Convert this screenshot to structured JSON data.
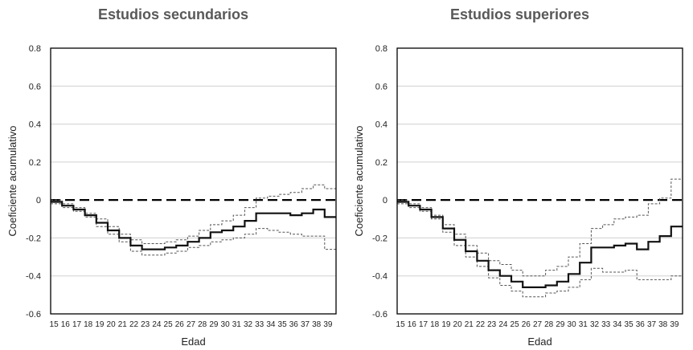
{
  "chart_data": [
    {
      "type": "line",
      "title": "Estudios secundarios",
      "xlabel": "Edad",
      "ylabel": "Coeficiente acumulativo",
      "ylim": [
        -0.6,
        0.8
      ],
      "yticks": [
        "0.8",
        "0.6",
        "0.4",
        "0.2",
        "0",
        "-0.2",
        "-0.4",
        "-0.6"
      ],
      "x": [
        15,
        16,
        17,
        18,
        19,
        20,
        21,
        22,
        23,
        24,
        25,
        26,
        27,
        28,
        29,
        30,
        31,
        32,
        33,
        34,
        35,
        36,
        37,
        38,
        39
      ],
      "grid": true,
      "zero_line": true,
      "series": [
        {
          "role": "estimate",
          "values": [
            -0.01,
            -0.03,
            -0.05,
            -0.08,
            -0.12,
            -0.16,
            -0.2,
            -0.24,
            -0.26,
            -0.26,
            -0.25,
            -0.24,
            -0.22,
            -0.2,
            -0.17,
            -0.16,
            -0.14,
            -0.11,
            -0.07,
            -0.07,
            -0.07,
            -0.08,
            -0.07,
            -0.05,
            -0.09
          ]
        },
        {
          "role": "upper",
          "values": [
            0.0,
            -0.02,
            -0.04,
            -0.07,
            -0.1,
            -0.14,
            -0.18,
            -0.21,
            -0.23,
            -0.23,
            -0.22,
            -0.21,
            -0.19,
            -0.16,
            -0.13,
            -0.11,
            -0.08,
            -0.04,
            0.01,
            0.02,
            0.03,
            0.04,
            0.06,
            0.08,
            0.06
          ]
        },
        {
          "role": "lower",
          "values": [
            -0.02,
            -0.04,
            -0.06,
            -0.09,
            -0.14,
            -0.18,
            -0.22,
            -0.27,
            -0.29,
            -0.29,
            -0.28,
            -0.27,
            -0.25,
            -0.24,
            -0.22,
            -0.21,
            -0.2,
            -0.18,
            -0.15,
            -0.16,
            -0.17,
            -0.18,
            -0.19,
            -0.19,
            -0.26
          ]
        }
      ]
    },
    {
      "type": "line",
      "title": "Estudios superiores",
      "xlabel": "Edad",
      "ylabel": "Coeficiente acumulativo",
      "ylim": [
        -0.6,
        0.8
      ],
      "yticks": [
        "0.8",
        "0.6",
        "0.4",
        "0.2",
        "0",
        "-0.2",
        "-0.4",
        "-0.6"
      ],
      "x": [
        15,
        16,
        17,
        18,
        19,
        20,
        21,
        22,
        23,
        24,
        25,
        26,
        27,
        28,
        29,
        30,
        31,
        32,
        33,
        34,
        35,
        36,
        37,
        38,
        39
      ],
      "grid": true,
      "zero_line": true,
      "series": [
        {
          "role": "estimate",
          "values": [
            -0.01,
            -0.03,
            -0.05,
            -0.09,
            -0.15,
            -0.21,
            -0.27,
            -0.32,
            -0.37,
            -0.4,
            -0.43,
            -0.46,
            -0.46,
            -0.45,
            -0.43,
            -0.39,
            -0.33,
            -0.25,
            -0.25,
            -0.24,
            -0.23,
            -0.26,
            -0.22,
            -0.19,
            -0.14
          ]
        },
        {
          "role": "upper",
          "values": [
            0.0,
            -0.02,
            -0.04,
            -0.08,
            -0.13,
            -0.18,
            -0.24,
            -0.28,
            -0.32,
            -0.34,
            -0.37,
            -0.4,
            -0.4,
            -0.37,
            -0.35,
            -0.3,
            -0.23,
            -0.15,
            -0.13,
            -0.1,
            -0.09,
            -0.08,
            -0.02,
            0.01,
            0.11
          ]
        },
        {
          "role": "lower",
          "values": [
            -0.02,
            -0.04,
            -0.06,
            -0.1,
            -0.17,
            -0.24,
            -0.3,
            -0.35,
            -0.41,
            -0.45,
            -0.48,
            -0.51,
            -0.51,
            -0.49,
            -0.48,
            -0.46,
            -0.42,
            -0.36,
            -0.38,
            -0.38,
            -0.37,
            -0.42,
            -0.42,
            -0.42,
            -0.4
          ]
        }
      ]
    }
  ]
}
